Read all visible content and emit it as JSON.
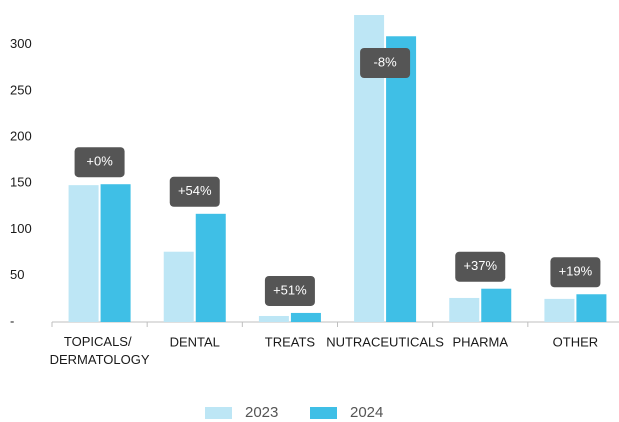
{
  "chart_data": {
    "type": "bar",
    "categories": [
      "TOPICALS/ DERMATOLOGY",
      "DENTAL",
      "TREATS",
      "NUTRACEUTICALS",
      "PHARMA",
      "OTHER"
    ],
    "series": [
      {
        "name": "2023",
        "color": "#bde6f5",
        "values": [
          148,
          76,
          6.5,
          332,
          26,
          25
        ]
      },
      {
        "name": "2024",
        "color": "#3fbfe6",
        "values": [
          149,
          117,
          9.8,
          309,
          36,
          30
        ]
      }
    ],
    "annotations": [
      "+0%",
      "+54%",
      "+51%",
      "-8%",
      "+37%",
      "+19%"
    ],
    "ylim": [
      0,
      332
    ],
    "yticks": [
      {
        "value": 0,
        "label": "-"
      },
      50,
      100,
      150,
      200,
      250,
      300
    ],
    "grid": false,
    "legend": "bottom"
  }
}
